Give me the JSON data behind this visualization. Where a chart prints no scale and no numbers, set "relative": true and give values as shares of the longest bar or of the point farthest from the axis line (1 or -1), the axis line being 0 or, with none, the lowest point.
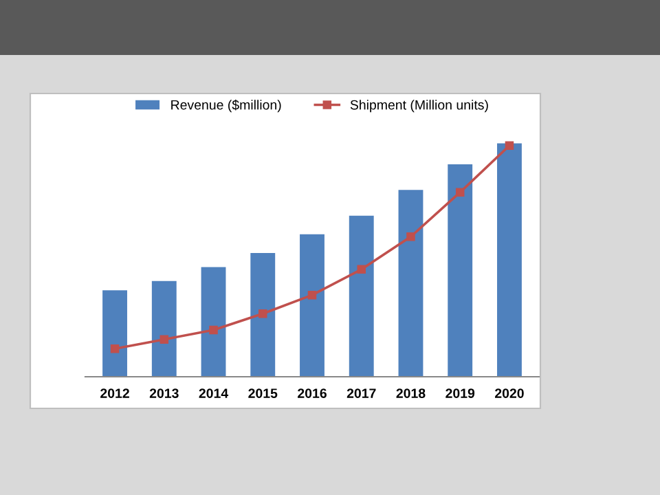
{
  "chart_data": {
    "type": "bar",
    "relative": true,
    "categories": [
      "2012",
      "2013",
      "2014",
      "2015",
      "2016",
      "2017",
      "2018",
      "2019",
      "2020"
    ],
    "series": [
      {
        "name": "Revenue ($million)",
        "color": "#4f81bd",
        "values": [
          0.37,
          0.41,
          0.47,
          0.53,
          0.61,
          0.69,
          0.8,
          0.91,
          1.0
        ]
      },
      {
        "name": "Shipment (Million units)",
        "type": "line",
        "color": "#c0504d",
        "marker": "square",
        "values": [
          0.12,
          0.16,
          0.2,
          0.27,
          0.35,
          0.46,
          0.6,
          0.79,
          0.99
        ]
      }
    ],
    "legend": "top",
    "grid": false
  }
}
